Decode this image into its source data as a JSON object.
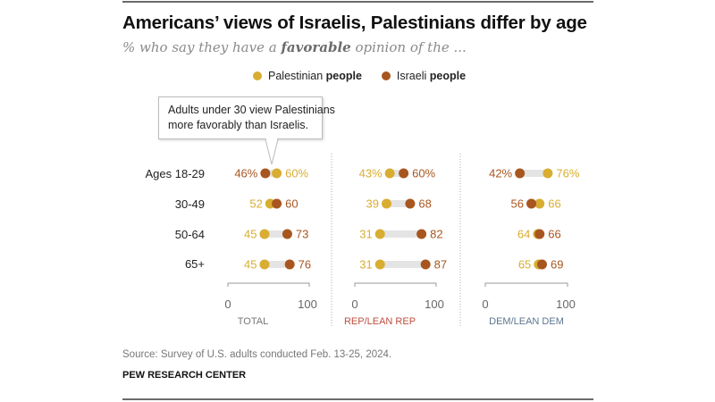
{
  "title": "Americans’ views of Israelis, Palestinians differ by age",
  "subtitle": {
    "pre": "% who say they have a ",
    "bold": "favorable",
    "post": " opinion of the ..."
  },
  "legend": [
    {
      "name_plain": "Palestinian ",
      "name_bold": "people",
      "color": "#d8ad32"
    },
    {
      "name_plain": "Israeli ",
      "name_bold": "people",
      "color": "#a8561f"
    }
  ],
  "callout": {
    "line1": "Adults under 30 view Palestinians",
    "line2": "more favorably than Israelis."
  },
  "source": "Source: Survey of U.S. adults conducted Feb. 13-25, 2024.",
  "brand": "PEW RESEARCH CENTER",
  "colors": {
    "palestinian": "#d8ad32",
    "israeli": "#a8561f",
    "bar": "#e4e4e4",
    "total_label": "#777777",
    "rep_label": "#bf4d3f",
    "dem_label": "#5b7590"
  },
  "chart_data": {
    "type": "dot-plot",
    "title": "Americans’ views of Israelis, Palestinians differ by age",
    "subtitle": "% who say they have a favorable opinion of the ...",
    "categories": [
      "Ages 18-29",
      "30-49",
      "50-64",
      "65+"
    ],
    "series_names": [
      "Palestinian people",
      "Israeli people"
    ],
    "xlim": [
      0,
      100
    ],
    "ticks": [
      "0",
      "100"
    ],
    "legend_position": "top-center",
    "panels": [
      {
        "label": "TOTAL",
        "palestinian": [
          60,
          52,
          45,
          45
        ],
        "israeli": [
          46,
          60,
          73,
          76
        ]
      },
      {
        "label": "REP/LEAN REP",
        "palestinian": [
          43,
          39,
          31,
          31
        ],
        "israeli": [
          60,
          68,
          82,
          87
        ]
      },
      {
        "label": "DEM/LEAN DEM",
        "palestinian": [
          76,
          66,
          64,
          65
        ],
        "israeli": [
          42,
          56,
          66,
          69
        ]
      }
    ],
    "first_row_suffix": "%"
  }
}
